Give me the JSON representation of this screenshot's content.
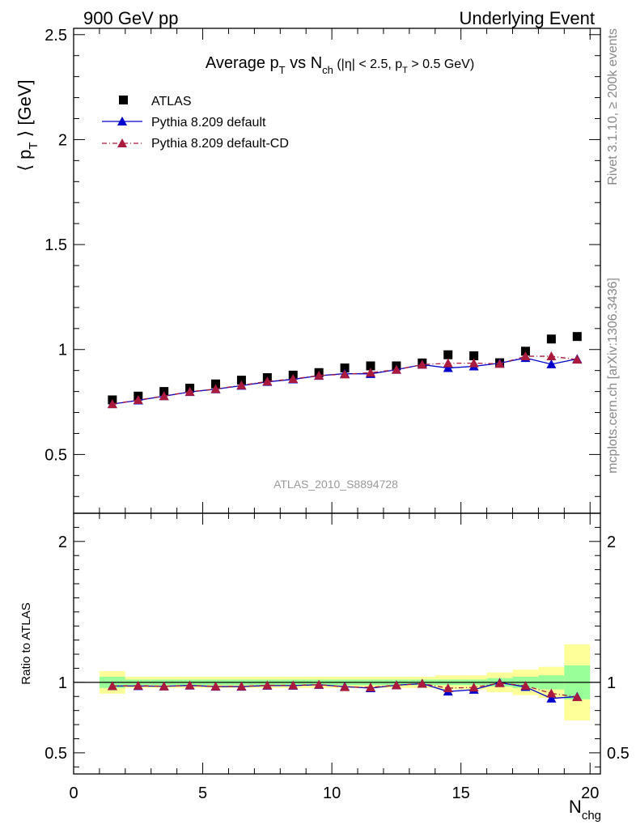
{
  "header": {
    "left": "900 GeV pp",
    "right": "Underlying Event"
  },
  "side_text": {
    "rivet": "Rivet 3.1.10, ≥ 200k events",
    "mcplots": "mcplots.cern.ch [arXiv:1306.3436]"
  },
  "chart_data": [
    {
      "type": "scatter",
      "panel": "main",
      "title_parts": {
        "pre": "Average p",
        "pre_sub": "T",
        "mid": " vs N",
        "mid_sub": "ch",
        "cond1": " (|η| < 2.5, p",
        "cond_sub": "T",
        "cond2": " > 0.5 GeV)"
      },
      "ylabel_parts": {
        "pre": "⟨ p",
        "sub": "T",
        "post": " ⟩ [GeV]"
      },
      "analysis_tag": "ATLAS_2010_S8894728",
      "ylim": [
        0.22,
        2.53
      ],
      "xlim": [
        0,
        20.4
      ],
      "yticks": [
        "0.5",
        "1",
        "1.5",
        "2",
        "2.5"
      ],
      "ytick_values": [
        0.5,
        1,
        1.5,
        2,
        2.5
      ],
      "legend_position": "top-left",
      "series": [
        {
          "name": "ATLAS",
          "style": "marker-square",
          "color": "#000000",
          "x": [
            1.5,
            2.5,
            3.5,
            4.5,
            5.5,
            6.5,
            7.5,
            8.5,
            9.5,
            10.5,
            11.5,
            12.5,
            13.5,
            14.5,
            15.5,
            16.5,
            17.5,
            18.5,
            19.5
          ],
          "y": [
            0.76,
            0.778,
            0.8,
            0.816,
            0.836,
            0.854,
            0.866,
            0.878,
            0.89,
            0.912,
            0.922,
            0.922,
            0.936,
            0.975,
            0.97,
            0.937,
            0.992,
            1.05,
            1.062
          ]
        },
        {
          "name": "Pythia 8.209 default",
          "style": "line-solid-triangle",
          "color": "#0000cc",
          "x": [
            1.5,
            2.5,
            3.5,
            4.5,
            5.5,
            6.5,
            7.5,
            8.5,
            9.5,
            10.5,
            11.5,
            12.5,
            13.5,
            14.5,
            15.5,
            16.5,
            17.5,
            18.5,
            19.5
          ],
          "y": [
            0.74,
            0.758,
            0.778,
            0.798,
            0.811,
            0.828,
            0.846,
            0.858,
            0.875,
            0.885,
            0.884,
            0.904,
            0.928,
            0.912,
            0.92,
            0.935,
            0.96,
            0.93,
            0.955
          ]
        },
        {
          "name": "Pythia 8.209 default-CD",
          "style": "line-dashdot-triangle",
          "color": "#aa1a3c",
          "x": [
            1.5,
            2.5,
            3.5,
            4.5,
            5.5,
            6.5,
            7.5,
            8.5,
            9.5,
            10.5,
            11.5,
            12.5,
            13.5,
            14.5,
            15.5,
            16.5,
            17.5,
            18.5,
            19.5
          ],
          "y": [
            0.74,
            0.76,
            0.778,
            0.799,
            0.812,
            0.83,
            0.848,
            0.86,
            0.876,
            0.882,
            0.89,
            0.904,
            0.928,
            0.935,
            0.935,
            0.932,
            0.968,
            0.968,
            0.952
          ]
        }
      ]
    },
    {
      "type": "line",
      "panel": "ratio",
      "ylabel": "Ratio to ATLAS",
      "xlabel_parts": {
        "pre": "N",
        "sub": "chg"
      },
      "ylim": [
        0.35,
        2.2
      ],
      "xlim": [
        0,
        20.4
      ],
      "yticks": [
        "0.5",
        "1",
        "2"
      ],
      "ytick_values": [
        0.5,
        1,
        2
      ],
      "xticks": [
        "0",
        "5",
        "10",
        "15",
        "20"
      ],
      "xtick_values": [
        0,
        5,
        10,
        15,
        20
      ],
      "bands": {
        "x_edges": [
          1,
          2,
          3,
          4,
          5,
          6,
          7,
          8,
          9,
          10,
          11,
          12,
          13,
          14,
          15,
          16,
          17,
          18,
          19,
          20
        ],
        "yellow_half_width": [
          0.08,
          0.04,
          0.04,
          0.04,
          0.04,
          0.04,
          0.04,
          0.04,
          0.04,
          0.04,
          0.04,
          0.04,
          0.04,
          0.05,
          0.05,
          0.07,
          0.09,
          0.11,
          0.27
        ],
        "green_half_width": [
          0.04,
          0.02,
          0.02,
          0.02,
          0.02,
          0.02,
          0.02,
          0.02,
          0.02,
          0.02,
          0.02,
          0.02,
          0.02,
          0.02,
          0.02,
          0.03,
          0.04,
          0.05,
          0.12
        ],
        "yellow_color": "#ffff99",
        "green_color": "#99ff99"
      },
      "series": [
        {
          "name": "Pythia 8.209 default",
          "color": "#0000cc",
          "x": [
            1.5,
            2.5,
            3.5,
            4.5,
            5.5,
            6.5,
            7.5,
            8.5,
            9.5,
            10.5,
            11.5,
            12.5,
            13.5,
            14.5,
            15.5,
            16.5,
            17.5,
            18.5,
            19.5
          ],
          "y": [
            0.974,
            0.974,
            0.972,
            0.978,
            0.97,
            0.97,
            0.977,
            0.977,
            0.983,
            0.97,
            0.959,
            0.98,
            0.991,
            0.935,
            0.948,
            0.998,
            0.968,
            0.886,
            0.899
          ]
        },
        {
          "name": "Pythia 8.209 default-CD",
          "color": "#aa1a3c",
          "x": [
            1.5,
            2.5,
            3.5,
            4.5,
            5.5,
            6.5,
            7.5,
            8.5,
            9.5,
            10.5,
            11.5,
            12.5,
            13.5,
            14.5,
            15.5,
            16.5,
            17.5,
            18.5,
            19.5
          ],
          "y": [
            0.974,
            0.977,
            0.972,
            0.979,
            0.971,
            0.972,
            0.979,
            0.979,
            0.984,
            0.967,
            0.965,
            0.98,
            0.991,
            0.959,
            0.964,
            0.995,
            0.976,
            0.922,
            0.896
          ]
        }
      ]
    }
  ]
}
